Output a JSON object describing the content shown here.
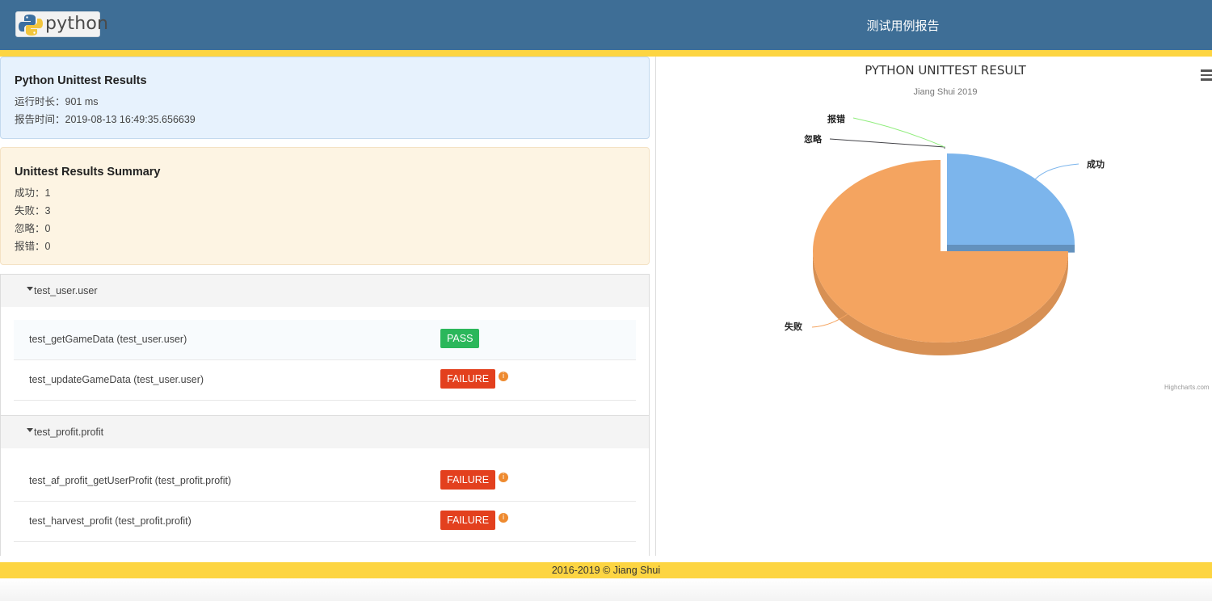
{
  "header": {
    "logo_text": "python",
    "title": "测试用例报告"
  },
  "info_panel": {
    "title": "Python Unittest Results",
    "duration": "运行时长：901 ms",
    "report_time": "报告时间：2019-08-13 16:49:35.656639"
  },
  "summary_panel": {
    "title": "Unittest Results Summary",
    "success": "成功：1",
    "failure": "失败：3",
    "skipped": "忽略：0",
    "error": "报错：0"
  },
  "groups": [
    {
      "name": "test_user.user",
      "cases": [
        {
          "name": "test_getGameData (test_user.user)",
          "status": "PASS"
        },
        {
          "name": "test_updateGameData (test_user.user)",
          "status": "FAILURE"
        }
      ]
    },
    {
      "name": "test_profit.profit",
      "cases": [
        {
          "name": "test_af_profit_getUserProfit (test_profit.profit)",
          "status": "FAILURE"
        },
        {
          "name": "test_harvest_profit (test_profit.profit)",
          "status": "FAILURE"
        }
      ]
    }
  ],
  "info_icon_glyph": "i",
  "chart_data": {
    "type": "pie",
    "title": "PYTHON UNITTEST RESULT",
    "subtitle": "Jiang Shui 2019",
    "categories": [
      "成功",
      "失败",
      "忽略",
      "报错"
    ],
    "values": [
      1,
      3,
      0,
      0
    ],
    "colors": [
      "#7cb5ec",
      "#f4a460",
      "#434348",
      "#90ed7d"
    ],
    "credits": "Highcharts.com",
    "legend": "none",
    "style": "3d"
  },
  "footer": {
    "text": "2016-2019 © Jiang Shui"
  },
  "colors": {
    "header_bg": "#3e6e96",
    "accent_stripe": "#fdd542",
    "pass": "#2bb75b",
    "failure": "#e3401e",
    "info_icon": "#ee8a2f"
  }
}
